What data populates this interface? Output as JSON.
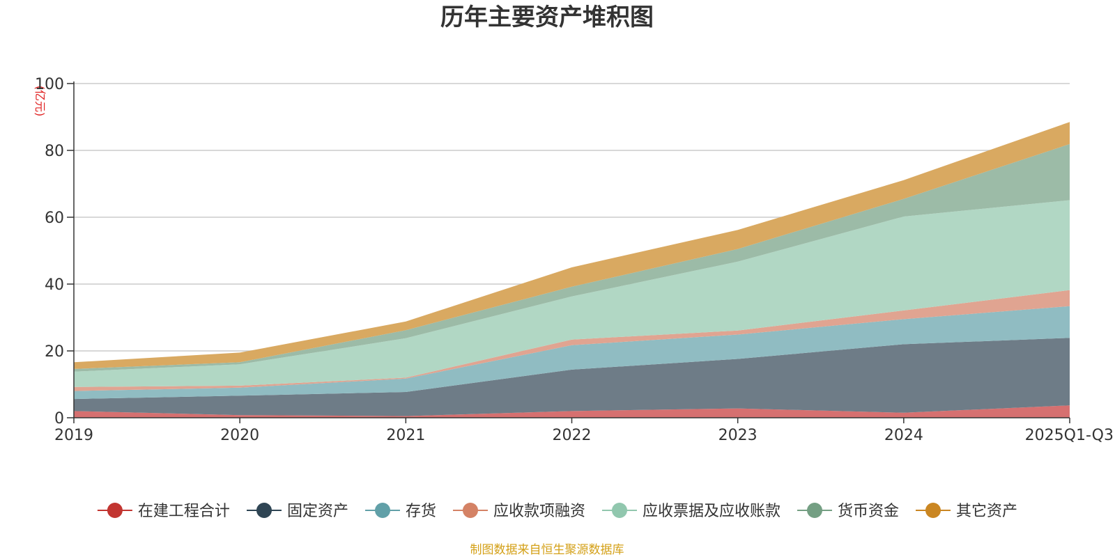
{
  "colors": {
    "axis": "#333333",
    "grid": "#cccccc",
    "unit": "#e02020",
    "source": "#d4a017"
  },
  "source_note": "制图数据来自恒生聚源数据库",
  "chart_data": {
    "type": "area",
    "stacked": true,
    "title": "历年主要资产堆积图",
    "ylabel": "(亿元)",
    "xlabel": "",
    "categories": [
      "2019",
      "2020",
      "2021",
      "2022",
      "2023",
      "2024",
      "2025Q1-Q3"
    ],
    "ylim": [
      0,
      100
    ],
    "yticks": [
      0,
      20,
      40,
      60,
      80,
      100
    ],
    "grid": true,
    "legend_position": "bottom",
    "series": [
      {
        "name": "在建工程合计",
        "color": "#c23531",
        "fill": "#d67070",
        "values": [
          2.0,
          0.8,
          0.5,
          2.0,
          2.8,
          1.5,
          3.7
        ]
      },
      {
        "name": "固定资产",
        "color": "#2f4554",
        "fill": "#6e7c87",
        "values": [
          3.6,
          5.8,
          7.2,
          12.4,
          14.8,
          20.5,
          20.2
        ]
      },
      {
        "name": "存货",
        "color": "#61a0a8",
        "fill": "#90bcc2",
        "values": [
          2.4,
          2.4,
          4.0,
          7.3,
          7.3,
          7.5,
          9.5
        ]
      },
      {
        "name": "应收款项融资",
        "color": "#d48265",
        "fill": "#e0a491",
        "values": [
          1.2,
          0.6,
          0.3,
          1.7,
          1.2,
          2.6,
          4.8
        ]
      },
      {
        "name": "应收票据及应收账款",
        "color": "#91c7ae",
        "fill": "#b1d7c4",
        "values": [
          4.6,
          6.4,
          11.8,
          12.9,
          20.6,
          28.1,
          26.9
        ]
      },
      {
        "name": "货币资金",
        "color": "#749f83",
        "fill": "#9cbba7",
        "values": [
          0.8,
          0.6,
          2.4,
          2.9,
          3.8,
          5.3,
          16.8
        ]
      },
      {
        "name": "其它资产",
        "color": "#ca8622",
        "fill": "#d9a961",
        "values": [
          2.0,
          2.9,
          2.6,
          5.8,
          5.7,
          5.6,
          6.6
        ]
      }
    ]
  }
}
